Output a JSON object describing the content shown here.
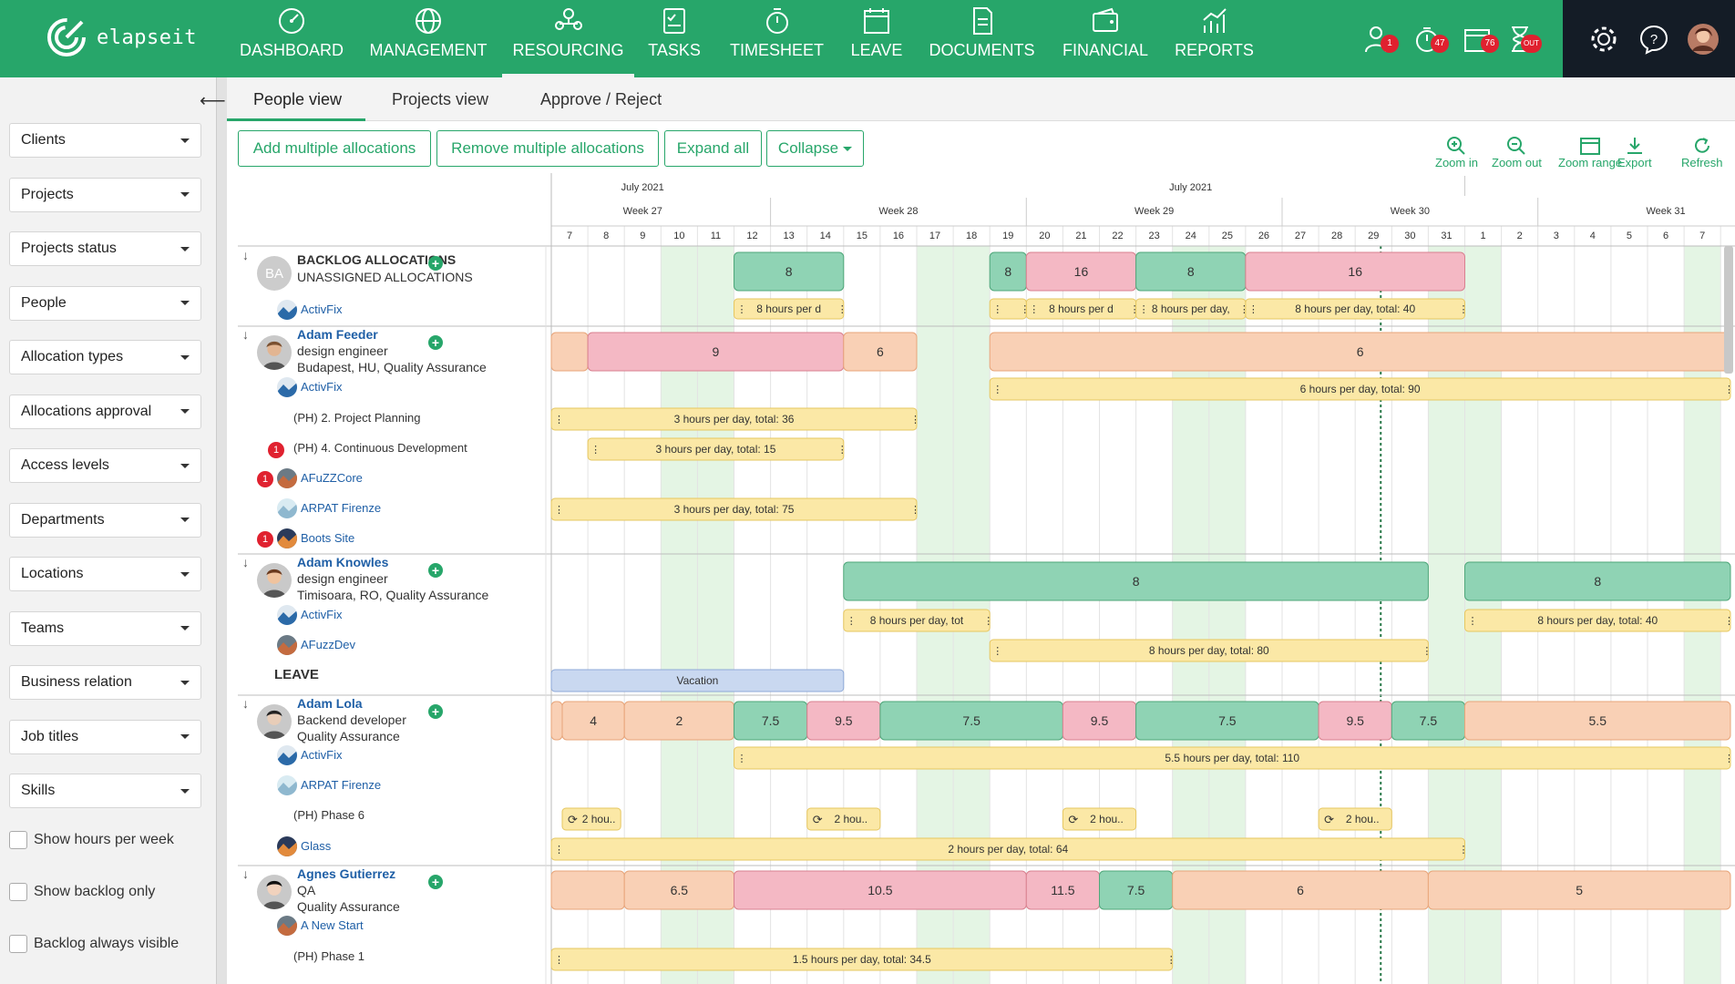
{
  "app": {
    "logo_text": "elapseit"
  },
  "nav": [
    {
      "label": "DASHBOARD",
      "icon": "dashboard-icon"
    },
    {
      "label": "MANAGEMENT",
      "icon": "globe-icon"
    },
    {
      "label": "RESOURCING",
      "icon": "people-icon",
      "active": true
    },
    {
      "label": "TASKS",
      "icon": "tasks-icon"
    },
    {
      "label": "TIMESHEET",
      "icon": "stopwatch-icon"
    },
    {
      "label": "LEAVE",
      "icon": "calendar-icon"
    },
    {
      "label": "DOCUMENTS",
      "icon": "document-icon"
    },
    {
      "label": "FINANCIAL",
      "icon": "wallet-icon"
    },
    {
      "label": "REPORTS",
      "icon": "chart-icon"
    }
  ],
  "top_badges": {
    "people": "1",
    "timer": "47",
    "calendar": "76",
    "hourglass": "OUT"
  },
  "sidebar": {
    "filters": [
      "Clients",
      "Projects",
      "Projects status",
      "People",
      "Allocation types",
      "Allocations approval",
      "Access levels",
      "Departments",
      "Locations",
      "Teams",
      "Business relation",
      "Job titles",
      "Skills"
    ],
    "checks": [
      "Show hours per week",
      "Show backlog only",
      "Backlog always visible"
    ]
  },
  "tabs": [
    "People view",
    "Projects view",
    "Approve / Reject"
  ],
  "buttons": {
    "add_multiple": "Add multiple allocations",
    "remove_multiple": "Remove multiple allocations",
    "expand_all": "Expand all",
    "collapse": "Collapse"
  },
  "tools": [
    "Zoom in",
    "Zoom out",
    "Zoom range",
    "Export",
    "Refresh"
  ],
  "timeline": {
    "months": [
      {
        "label": "July 2021",
        "pos": "left"
      },
      {
        "label": "July 2021",
        "pos": "right"
      }
    ],
    "weeks": [
      "Week 27",
      "Week 28",
      "Week 29",
      "Week 30",
      "Week 31"
    ],
    "days": [
      "7",
      "8",
      "9",
      "10",
      "11",
      "12",
      "13",
      "14",
      "15",
      "16",
      "17",
      "18",
      "19",
      "20",
      "21",
      "22",
      "23",
      "24",
      "25",
      "26",
      "27",
      "28",
      "29",
      "30",
      "31",
      "1",
      "2",
      "3",
      "4",
      "5",
      "6",
      "7"
    ]
  },
  "rows": {
    "backlog": {
      "initials": "BA",
      "title": "BACKLOG ALLOCATIONS",
      "subtitle": "UNASSIGNED ALLOCATIONS",
      "project": "ActivFix"
    },
    "adam_feeder": {
      "name": "Adam Feeder",
      "role": "design engineer",
      "location": "Budapest, HU, Quality Assurance",
      "projects": [
        "ActivFix",
        "(PH) 2. Project Planning",
        "(PH) 4. Continuous Development",
        "AFuZZCore",
        "ARPAT Firenze",
        "Boots Site"
      ],
      "badges": [
        "1",
        "1",
        "1"
      ]
    },
    "adam_knowles": {
      "name": "Adam Knowles",
      "role": "design engineer",
      "location": "Timisoara, RO, Quality Assurance",
      "projects": [
        "ActivFix",
        "AFuzzDev"
      ],
      "leave": "LEAVE"
    },
    "adam_lola": {
      "name": "Adam Lola",
      "role": "Backend developer",
      "location": "Quality Assurance",
      "projects": [
        "ActivFix",
        "ARPAT Firenze",
        "(PH) Phase 6",
        "Glass"
      ]
    },
    "agnes": {
      "name": "Agnes Gutierrez",
      "role": "QA",
      "location": "Quality Assurance",
      "projects": [
        "A New Start",
        "(PH) Phase 1"
      ]
    }
  },
  "bars": {
    "b1": "8",
    "b2": "8",
    "b3": "16",
    "b4": "8",
    "b5": "16",
    "b_back_y1": "8 hours per d",
    "b_back_y2": "8 hours per d",
    "b_back_y3": "8 hours per day,",
    "b_back_y4": "8 hours per day, total: 40",
    "f1": "9",
    "f2": "6",
    "f3": "6",
    "fy1": "6 hours per day, total: 90",
    "fy2": "3 hours per day, total: 36",
    "fy3": "3 hours per day, total: 15",
    "fy4": "3 hours per day, total: 75",
    "k1": "8",
    "k2": "8",
    "ky1": "8 hours per day, tot",
    "ky2": "8 hours per day, total: 40",
    "ky3": "8 hours per day, total: 80",
    "vac": "Vacation",
    "l1": "4",
    "l2": "2",
    "l3": "7.5",
    "l4": "9.5",
    "l5": "7.5",
    "l6": "9.5",
    "l7": "7.5",
    "l8": "9.5",
    "l9": "7.5",
    "l10": "5.5",
    "ly1": "5.5 hours per day, total: 110",
    "lr1": "2 hou..",
    "lr2": "2 hou..",
    "lr3": "2 hou..",
    "lr4": "2 hou..",
    "ly2": "2 hours per day, total: 64",
    "g1": "6.5",
    "g2": "10.5",
    "g3": "11.5",
    "g4": "7.5",
    "g5": "6",
    "g6": "5",
    "gy1": "1.5 hours per day, total: 34.5"
  },
  "colors": {
    "brand": "#27a66a",
    "green_bar": "#8fd3b4",
    "pink_bar": "#f4b8c4",
    "orange_bar": "#f9d0b5",
    "yellow_bar": "#fbe8a6",
    "blue_bar": "#c9d8f0"
  }
}
